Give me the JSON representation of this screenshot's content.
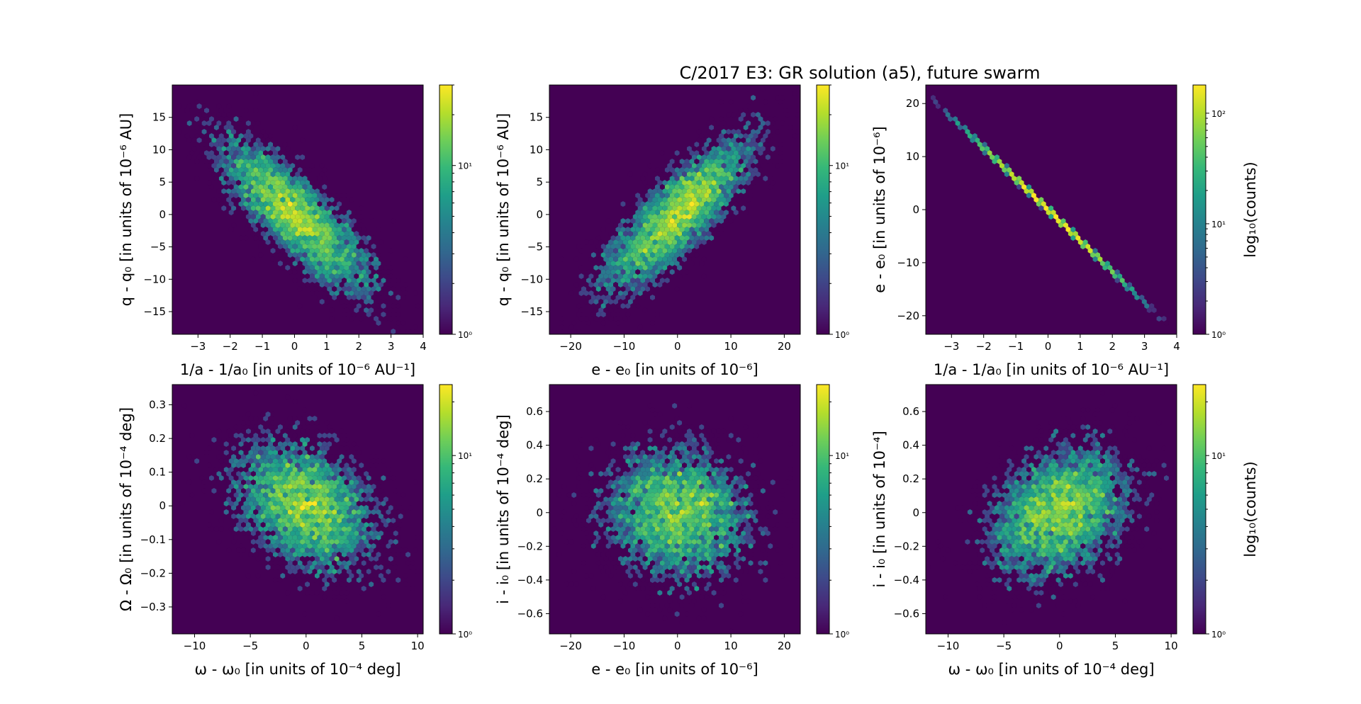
{
  "figure": {
    "title": "C/2017 E3: GR solution (a5), future swarm"
  },
  "colormap": {
    "name": "viridis",
    "stops": [
      "#440154",
      "#482878",
      "#3e4989",
      "#31688e",
      "#26828e",
      "#1f9e89",
      "#35b779",
      "#6ece58",
      "#b5de2b",
      "#fde725"
    ],
    "background": "#440154"
  },
  "chart_data": [
    {
      "type": "heatmap",
      "subtype": "hexbin",
      "xlabel": "1/a - 1/a₀ [in units of 10⁻⁶ AU⁻¹]",
      "ylabel": "q - q₀ [in units of 10⁻⁶ AU]",
      "xlim": [
        -3.8,
        4.0
      ],
      "ylim": [
        -18.5,
        20.0
      ],
      "xticks": [
        -3,
        -2,
        -1,
        0,
        1,
        2,
        3,
        4
      ],
      "yticks": [
        -15,
        -10,
        -5,
        0,
        5,
        10,
        15
      ],
      "distribution": {
        "x_mean": 0,
        "x_sd": 1.2,
        "y_mean": 0,
        "y_sd": 6.0,
        "correlation": -0.82
      },
      "colorbar": {
        "ticks": [
          "10⁰",
          "10¹"
        ],
        "tick_values": [
          1,
          10
        ],
        "range": [
          1,
          30
        ],
        "label": ""
      }
    },
    {
      "type": "heatmap",
      "subtype": "hexbin",
      "xlabel": "e - e₀ [in units of 10⁻⁶]",
      "ylabel": "q - q₀ [in units of 10⁻⁶ AU]",
      "xlim": [
        -24.0,
        23.0
      ],
      "ylim": [
        -18.5,
        20.0
      ],
      "xticks": [
        -20,
        -10,
        0,
        10,
        20
      ],
      "yticks": [
        -15,
        -10,
        -5,
        0,
        5,
        10,
        15
      ],
      "distribution": {
        "x_mean": 0,
        "x_sd": 7.0,
        "y_mean": 0,
        "y_sd": 6.0,
        "correlation": 0.82
      },
      "colorbar": {
        "ticks": [
          "10⁰",
          "10¹"
        ],
        "tick_values": [
          1,
          10
        ],
        "range": [
          1,
          30
        ],
        "label": ""
      }
    },
    {
      "type": "heatmap",
      "subtype": "hexbin",
      "title": "C/2017 E3: GR solution (a5), future swarm",
      "xlabel": "1/a - 1/a₀ [in units of 10⁻⁶ AU⁻¹]",
      "ylabel": "e - e₀ [in units of 10⁻⁶]",
      "xlim": [
        -3.8,
        4.0
      ],
      "ylim": [
        -23.5,
        23.5
      ],
      "xticks": [
        -3,
        -2,
        -1,
        0,
        1,
        2,
        3,
        4
      ],
      "yticks": [
        -20,
        -10,
        0,
        10,
        20
      ],
      "distribution": {
        "x_mean": 0,
        "x_sd": 1.2,
        "y_mean": 0,
        "y_sd": 7.0,
        "correlation": -0.9999
      },
      "colorbar": {
        "ticks": [
          "10⁰",
          "10¹",
          "10²"
        ],
        "tick_values": [
          1,
          10,
          100
        ],
        "range": [
          1,
          180
        ],
        "label": "log₁₀(counts)"
      }
    },
    {
      "type": "heatmap",
      "subtype": "hexbin",
      "xlabel": "ω - ω₀ [in units of 10⁻⁴ deg]",
      "ylabel": "Ω - Ω₀ [in units of 10⁻⁴ deg]",
      "xlim": [
        -12.0,
        10.5
      ],
      "ylim": [
        -0.38,
        0.36
      ],
      "xticks": [
        -10,
        -5,
        0,
        5,
        10
      ],
      "yticks": [
        -0.3,
        -0.2,
        -0.1,
        0.0,
        0.1,
        0.2,
        0.3
      ],
      "distribution": {
        "x_mean": 0,
        "x_sd": 3.2,
        "y_mean": 0,
        "y_sd": 0.1,
        "correlation": -0.35
      },
      "colorbar": {
        "ticks": [
          "10⁰",
          "10¹"
        ],
        "tick_values": [
          1,
          10
        ],
        "range": [
          1,
          25
        ],
        "label": ""
      }
    },
    {
      "type": "heatmap",
      "subtype": "hexbin",
      "xlabel": "e - e₀ [in units of 10⁻⁶]",
      "ylabel": "i - i₀ [in units of 10⁻⁴ deg]",
      "xlim": [
        -24.0,
        23.0
      ],
      "ylim": [
        -0.72,
        0.76
      ],
      "xticks": [
        -20,
        -10,
        0,
        10,
        20
      ],
      "yticks": [
        -0.6,
        -0.4,
        -0.2,
        0.0,
        0.2,
        0.4,
        0.6
      ],
      "distribution": {
        "x_mean": 0,
        "x_sd": 7.0,
        "y_mean": 0,
        "y_sd": 0.2,
        "correlation": -0.05
      },
      "colorbar": {
        "ticks": [
          "10⁰",
          "10¹"
        ],
        "tick_values": [
          1,
          10
        ],
        "range": [
          1,
          25
        ],
        "label": ""
      }
    },
    {
      "type": "heatmap",
      "subtype": "hexbin",
      "xlabel": "ω - ω₀ [in units of 10⁻⁴ deg]",
      "ylabel": "i - i₀ [in units of 10⁻⁴]",
      "xlim": [
        -12.0,
        10.5
      ],
      "ylim": [
        -0.72,
        0.76
      ],
      "xticks": [
        -10,
        -5,
        0,
        5,
        10
      ],
      "yticks": [
        -0.6,
        -0.4,
        -0.2,
        0.0,
        0.2,
        0.4,
        0.6
      ],
      "distribution": {
        "x_mean": 0,
        "x_sd": 3.2,
        "y_mean": 0,
        "y_sd": 0.2,
        "correlation": 0.3
      },
      "colorbar": {
        "ticks": [
          "10⁰",
          "10¹"
        ],
        "tick_values": [
          1,
          10
        ],
        "range": [
          1,
          25
        ],
        "label": "log₁₀(counts)"
      }
    }
  ]
}
